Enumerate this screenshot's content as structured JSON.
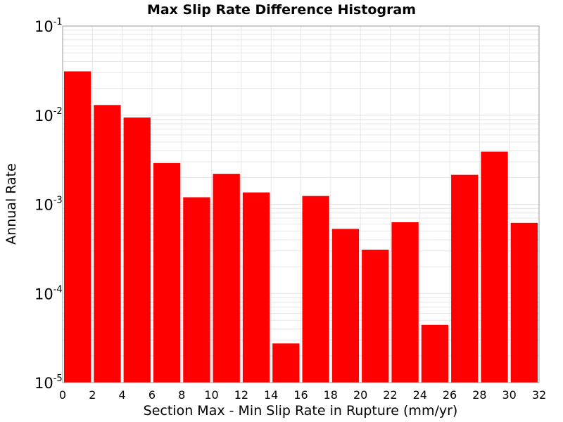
{
  "chart_data": {
    "type": "bar",
    "title": "Max Slip Rate Difference Histogram",
    "xlabel": "Section Max - Min Slip Rate in Rupture (mm/yr)",
    "ylabel": "Annual Rate",
    "y_scale": "log",
    "xlim": [
      0,
      32
    ],
    "ylim": [
      1e-05,
      0.1
    ],
    "bin_width": 2,
    "x_ticks": [
      "0",
      "2",
      "4",
      "6",
      "8",
      "10",
      "12",
      "14",
      "16",
      "18",
      "20",
      "22",
      "24",
      "26",
      "28",
      "30",
      "32"
    ],
    "y_ticks": [
      {
        "base": "10",
        "exp": "-5",
        "value": 1e-05
      },
      {
        "base": "10",
        "exp": "-4",
        "value": 0.0001
      },
      {
        "base": "10",
        "exp": "-3",
        "value": 0.001
      },
      {
        "base": "10",
        "exp": "-2",
        "value": 0.01
      },
      {
        "base": "10",
        "exp": "-1",
        "value": 0.1
      }
    ],
    "grid": true,
    "bar_color": "#ff0000",
    "bins": [
      {
        "x": 1,
        "value": 0.031
      },
      {
        "x": 3,
        "value": 0.013
      },
      {
        "x": 5,
        "value": 0.0094
      },
      {
        "x": 7,
        "value": 0.0029
      },
      {
        "x": 9,
        "value": 0.0012
      },
      {
        "x": 11,
        "value": 0.0022
      },
      {
        "x": 13,
        "value": 0.00136
      },
      {
        "x": 15,
        "value": 2.75e-05
      },
      {
        "x": 17,
        "value": 0.00124
      },
      {
        "x": 19,
        "value": 0.00053
      },
      {
        "x": 21,
        "value": 0.00031
      },
      {
        "x": 23,
        "value": 0.00063
      },
      {
        "x": 25,
        "value": 4.45e-05
      },
      {
        "x": 27,
        "value": 0.00214
      },
      {
        "x": 29,
        "value": 0.0039
      },
      {
        "x": 31,
        "value": 0.00062
      }
    ]
  }
}
